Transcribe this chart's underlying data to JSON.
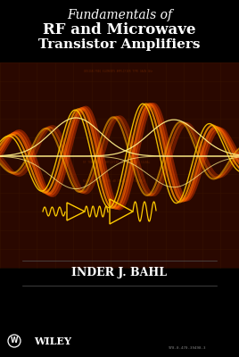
{
  "title_line1": "Fundamentals of",
  "title_line2": "RF and Microwave",
  "title_line3": "Transistor Amplifiers",
  "author": "INDER J. BAHL",
  "publisher": "©WILEY",
  "bg_color": "#000000",
  "title_color": "#ffffff",
  "author_color": "#ffffff",
  "publisher_color": "#ffffff",
  "figsize": [
    2.68,
    4.0
  ],
  "dpi": 100
}
